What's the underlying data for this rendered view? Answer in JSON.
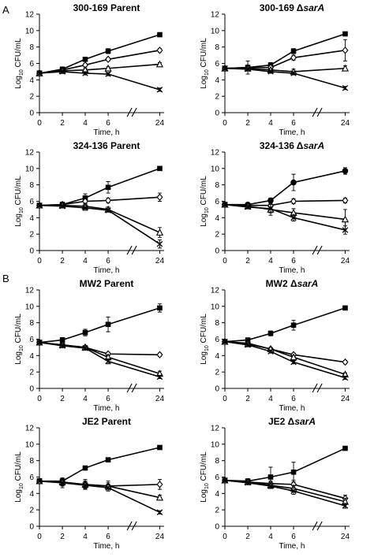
{
  "panel_letters": [
    "A",
    "B"
  ],
  "chart_data": [
    {
      "type": "line",
      "title": "300-169 Parent",
      "title_italic": "",
      "xlabel": "Time, h",
      "ylabel": "Log10 CFU/mL",
      "x": [
        0,
        2,
        4,
        6,
        24
      ],
      "x_ticks": [
        "0",
        "2",
        "4",
        "6",
        "24"
      ],
      "axis_break": [
        6,
        24
      ],
      "ylim": [
        0,
        12
      ],
      "y_ticks": [
        "0",
        "2",
        "4",
        "6",
        "8",
        "10",
        "12"
      ],
      "series": [
        {
          "marker": "filled-square",
          "values": [
            4.8,
            5.3,
            6.5,
            7.5,
            9.5
          ],
          "errors": [
            0.3,
            0.2,
            0.2,
            0.3,
            0.1
          ]
        },
        {
          "marker": "open-diamond",
          "values": [
            4.8,
            5.2,
            5.8,
            6.5,
            7.6
          ],
          "errors": [
            0.2,
            0.2,
            0.2,
            0.2,
            0.2
          ]
        },
        {
          "marker": "open-triangle",
          "values": [
            4.8,
            5.1,
            5.2,
            5.4,
            5.9
          ],
          "errors": [
            0.2,
            0.2,
            0.2,
            0.2,
            0.2
          ]
        },
        {
          "marker": "x",
          "values": [
            4.8,
            5.0,
            4.8,
            4.7,
            2.8
          ],
          "errors": [
            0.2,
            0.2,
            0.2,
            0.2,
            0.2
          ]
        }
      ]
    },
    {
      "type": "line",
      "title": "300-169 Δ",
      "title_italic": "sarA",
      "xlabel": "Time, h",
      "ylabel": "Log10 CFU/mL",
      "x": [
        0,
        2,
        4,
        6,
        24
      ],
      "x_ticks": [
        "0",
        "2",
        "4",
        "6",
        "24"
      ],
      "axis_break": [
        6,
        24
      ],
      "ylim": [
        0,
        12
      ],
      "y_ticks": [
        "0",
        "2",
        "4",
        "6",
        "8",
        "10",
        "12"
      ],
      "series": [
        {
          "marker": "filled-square",
          "values": [
            5.4,
            5.5,
            5.8,
            7.5,
            9.6
          ],
          "errors": [
            0.2,
            0.3,
            0.3,
            0.3,
            0.2
          ]
        },
        {
          "marker": "open-diamond",
          "values": [
            5.4,
            5.5,
            5.5,
            6.7,
            7.6
          ],
          "errors": [
            0.2,
            0.8,
            0.2,
            0.3,
            1.3
          ]
        },
        {
          "marker": "open-triangle",
          "values": [
            5.4,
            5.4,
            5.2,
            5.0,
            5.4
          ],
          "errors": [
            0.2,
            0.3,
            0.2,
            0.3,
            0.3
          ]
        },
        {
          "marker": "x",
          "values": [
            5.4,
            5.3,
            5.0,
            4.8,
            3.0
          ],
          "errors": [
            0.2,
            0.2,
            0.2,
            0.2,
            0.2
          ]
        }
      ]
    },
    {
      "type": "line",
      "title": "324-136 Parent",
      "title_italic": "",
      "xlabel": "Time, h",
      "ylabel": "Log10 CFU/mL",
      "x": [
        0,
        2,
        4,
        6,
        24
      ],
      "x_ticks": [
        "0",
        "2",
        "4",
        "6",
        "24"
      ],
      "axis_break": [
        6,
        24
      ],
      "ylim": [
        0,
        12
      ],
      "y_ticks": [
        "0",
        "2",
        "4",
        "6",
        "8",
        "10",
        "12"
      ],
      "series": [
        {
          "marker": "filled-square",
          "values": [
            5.5,
            5.6,
            6.4,
            7.7,
            10.0
          ],
          "errors": [
            0.2,
            0.3,
            0.5,
            0.7,
            0.2
          ]
        },
        {
          "marker": "open-diamond",
          "values": [
            5.5,
            5.6,
            6.0,
            6.1,
            6.5
          ],
          "errors": [
            0.2,
            0.2,
            0.4,
            0.3,
            0.5
          ]
        },
        {
          "marker": "open-triangle",
          "values": [
            5.5,
            5.5,
            5.4,
            5.0,
            2.2
          ],
          "errors": [
            0.2,
            0.2,
            0.3,
            0.3,
            0.6
          ]
        },
        {
          "marker": "x",
          "values": [
            5.5,
            5.4,
            5.2,
            4.9,
            0.8
          ],
          "errors": [
            0.2,
            0.2,
            0.3,
            0.2,
            0.5
          ]
        }
      ]
    },
    {
      "type": "line",
      "title": "324-136 Δ",
      "title_italic": "sarA",
      "xlabel": "Time, h",
      "ylabel": "Log10 CFU/mL",
      "x": [
        0,
        2,
        4,
        6,
        24
      ],
      "x_ticks": [
        "0",
        "2",
        "4",
        "6",
        "24"
      ],
      "axis_break": [
        6,
        24
      ],
      "ylim": [
        0,
        12
      ],
      "y_ticks": [
        "0",
        "2",
        "4",
        "6",
        "8",
        "10",
        "12"
      ],
      "series": [
        {
          "marker": "filled-circle",
          "values": [
            5.6,
            5.6,
            6.1,
            8.3,
            9.7
          ],
          "errors": [
            0.2,
            0.2,
            0.3,
            1.0,
            0.4
          ]
        },
        {
          "marker": "open-diamond",
          "values": [
            5.6,
            5.5,
            5.5,
            6.0,
            6.1
          ],
          "errors": [
            0.2,
            0.2,
            0.3,
            0.3,
            0.3
          ]
        },
        {
          "marker": "open-triangle",
          "values": [
            5.6,
            5.4,
            5.0,
            4.6,
            3.8
          ],
          "errors": [
            0.2,
            0.2,
            0.7,
            0.5,
            1.2
          ]
        },
        {
          "marker": "x",
          "values": [
            5.6,
            5.3,
            5.1,
            4.0,
            2.5
          ],
          "errors": [
            0.2,
            0.2,
            0.5,
            0.4,
            0.5
          ]
        }
      ]
    },
    {
      "type": "line",
      "title": "MW2 Parent",
      "title_italic": "",
      "xlabel": "Time, h",
      "ylabel": "Log10 CFU/mL",
      "x": [
        0,
        2,
        4,
        6,
        24
      ],
      "x_ticks": [
        "0",
        "2",
        "4",
        "6",
        "24"
      ],
      "axis_break": [
        6,
        24
      ],
      "ylim": [
        0,
        12
      ],
      "y_ticks": [
        "0",
        "2",
        "4",
        "6",
        "8",
        "10",
        "12"
      ],
      "series": [
        {
          "marker": "filled-square",
          "values": [
            5.6,
            5.9,
            6.8,
            7.8,
            9.8
          ],
          "errors": [
            0.2,
            0.3,
            0.4,
            0.9,
            0.5
          ]
        },
        {
          "marker": "open-diamond",
          "values": [
            5.6,
            5.3,
            5.0,
            4.2,
            4.1
          ],
          "errors": [
            0.2,
            0.2,
            0.2,
            0.2,
            0.2
          ]
        },
        {
          "marker": "open-triangle",
          "values": [
            5.6,
            5.3,
            5.0,
            3.8,
            1.8
          ],
          "errors": [
            0.2,
            0.2,
            0.2,
            0.3,
            0.3
          ]
        },
        {
          "marker": "x",
          "values": [
            5.6,
            5.2,
            4.9,
            3.3,
            1.4
          ],
          "errors": [
            0.2,
            0.2,
            0.2,
            0.3,
            0.2
          ]
        }
      ]
    },
    {
      "type": "line",
      "title": "MW2 Δ",
      "title_italic": "sarA",
      "xlabel": "Time, h",
      "ylabel": "Log10 CFU/mL",
      "x": [
        0,
        2,
        4,
        6,
        24
      ],
      "x_ticks": [
        "0",
        "2",
        "4",
        "6",
        "24"
      ],
      "axis_break": [
        6,
        24
      ],
      "ylim": [
        0,
        12
      ],
      "y_ticks": [
        "0",
        "2",
        "4",
        "6",
        "8",
        "10",
        "12"
      ],
      "series": [
        {
          "marker": "filled-square",
          "values": [
            5.7,
            5.9,
            6.7,
            7.7,
            9.8
          ],
          "errors": [
            0.2,
            0.2,
            0.3,
            0.6,
            0.2
          ]
        },
        {
          "marker": "open-diamond",
          "values": [
            5.7,
            5.5,
            4.8,
            4.1,
            3.2
          ],
          "errors": [
            0.2,
            0.2,
            0.2,
            0.2,
            0.2
          ]
        },
        {
          "marker": "open-triangle",
          "values": [
            5.7,
            5.4,
            4.8,
            3.8,
            1.7
          ],
          "errors": [
            0.2,
            0.2,
            0.2,
            0.2,
            0.2
          ]
        },
        {
          "marker": "x",
          "values": [
            5.7,
            5.3,
            4.5,
            3.2,
            1.3
          ],
          "errors": [
            0.2,
            0.2,
            0.2,
            0.2,
            0.2
          ]
        }
      ]
    },
    {
      "type": "line",
      "title": "JE2 Parent",
      "title_italic": "",
      "xlabel": "Time, h",
      "ylabel": "Log10 CFU/mL",
      "x": [
        0,
        2,
        4,
        6,
        24
      ],
      "x_ticks": [
        "0",
        "2",
        "4",
        "6",
        "24"
      ],
      "axis_break": [
        6,
        24
      ],
      "ylim": [
        0,
        12
      ],
      "y_ticks": [
        "0",
        "2",
        "4",
        "6",
        "8",
        "10",
        "12"
      ],
      "series": [
        {
          "marker": "filled-square",
          "values": [
            5.5,
            5.5,
            7.1,
            8.1,
            9.6
          ],
          "errors": [
            0.3,
            0.3,
            0.2,
            0.2,
            0.2
          ]
        },
        {
          "marker": "open-diamond",
          "values": [
            5.5,
            5.3,
            5.1,
            4.9,
            5.1
          ],
          "errors": [
            0.3,
            0.6,
            0.6,
            0.6,
            0.6
          ]
        },
        {
          "marker": "open-triangle",
          "values": [
            5.5,
            5.4,
            5.1,
            4.9,
            3.5
          ],
          "errors": [
            0.3,
            0.4,
            0.4,
            0.4,
            0.3
          ]
        },
        {
          "marker": "x",
          "values": [
            5.5,
            5.3,
            5.0,
            4.7,
            1.7
          ],
          "errors": [
            0.3,
            0.4,
            0.4,
            0.4,
            0.2
          ]
        }
      ]
    },
    {
      "type": "line",
      "title": "JE2 Δ",
      "title_italic": "sarA",
      "xlabel": "Time, h",
      "ylabel": "Log10 CFU/mL",
      "x": [
        0,
        2,
        4,
        6,
        24
      ],
      "x_ticks": [
        "0",
        "2",
        "4",
        "6",
        "24"
      ],
      "axis_break": [
        6,
        24
      ],
      "ylim": [
        0,
        12
      ],
      "y_ticks": [
        "0",
        "2",
        "4",
        "6",
        "8",
        "10",
        "12"
      ],
      "series": [
        {
          "marker": "filled-square",
          "values": [
            5.6,
            5.5,
            6.0,
            6.6,
            9.5
          ],
          "errors": [
            0.2,
            0.3,
            1.2,
            1.2,
            0.2
          ]
        },
        {
          "marker": "open-diamond",
          "values": [
            5.6,
            5.4,
            5.2,
            5.1,
            3.4
          ],
          "errors": [
            0.2,
            0.2,
            0.3,
            0.5,
            0.4
          ]
        },
        {
          "marker": "open-triangle",
          "values": [
            5.6,
            5.4,
            5.0,
            4.6,
            3.0
          ],
          "errors": [
            0.2,
            0.2,
            0.3,
            0.4,
            0.4
          ]
        },
        {
          "marker": "x",
          "values": [
            5.6,
            5.3,
            4.9,
            4.3,
            2.5
          ],
          "errors": [
            0.2,
            0.2,
            0.3,
            0.4,
            0.3
          ]
        }
      ]
    }
  ]
}
